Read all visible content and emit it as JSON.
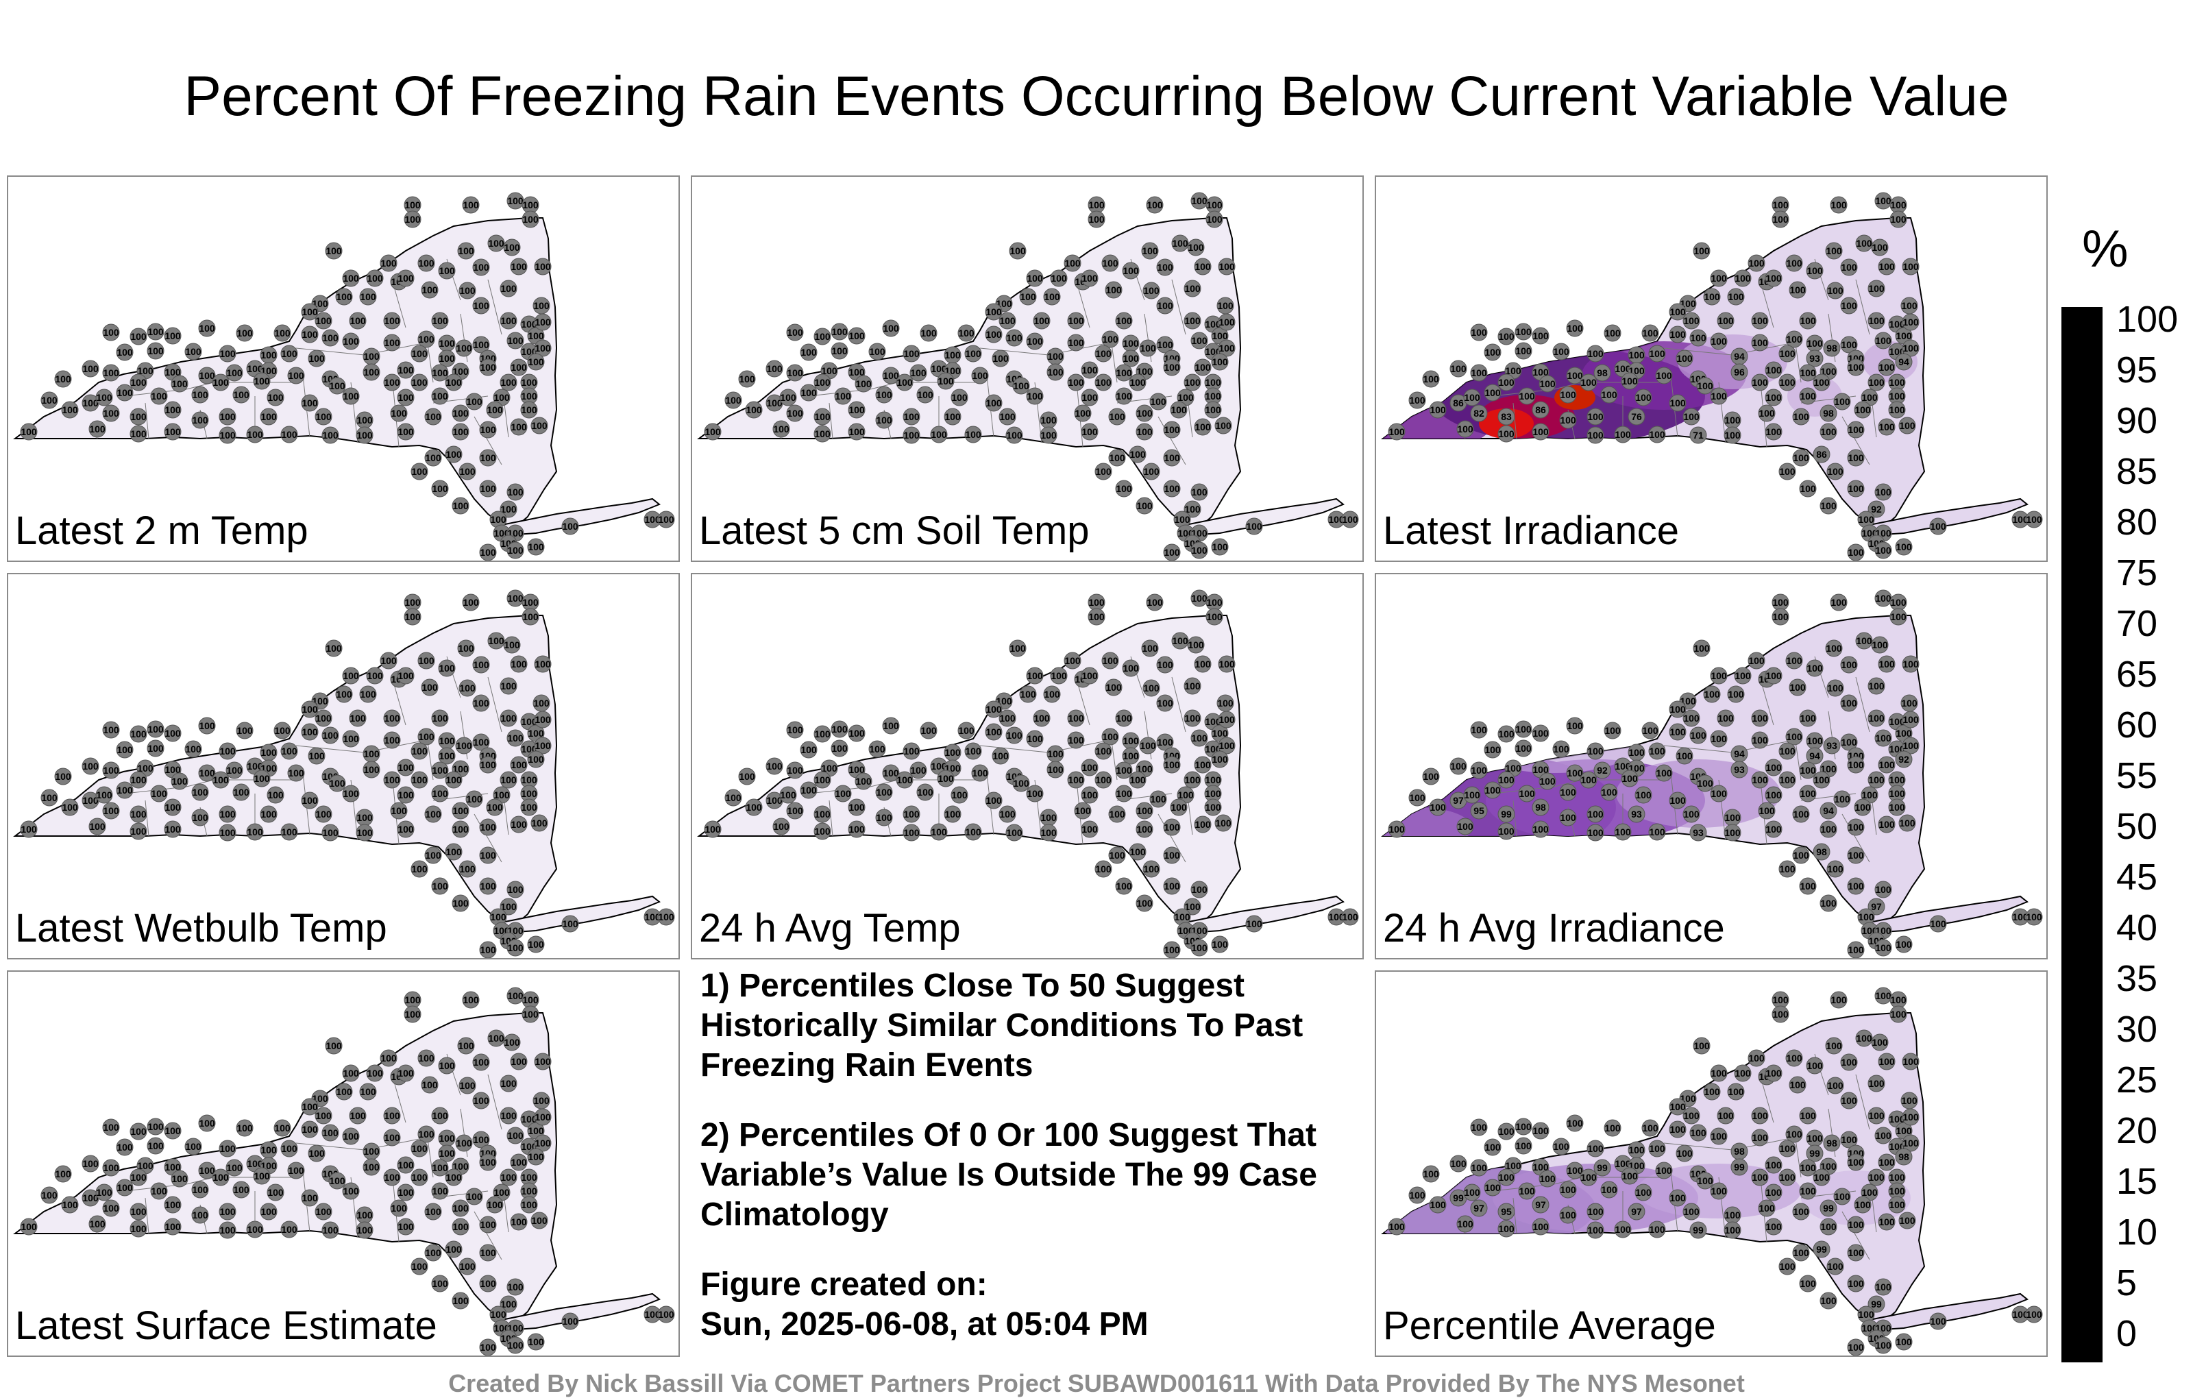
{
  "title": "Percent Of Freezing Rain Events Occurring Below Current Variable Value",
  "panels": [
    {
      "label": "Latest 2 m Temp",
      "field": "uniform",
      "value": 100
    },
    {
      "label": "Latest 5 cm Soil Temp",
      "field": "uniform",
      "value": 100
    },
    {
      "label": "Latest Irradiance",
      "field": "irradiance",
      "low_values": [
        "98",
        "86",
        "71",
        "82",
        "83",
        "86",
        "76",
        "94",
        "98",
        "96",
        "94",
        "93",
        "98",
        "92",
        "86"
      ]
    },
    {
      "label": "Latest Wetbulb Temp",
      "field": "uniform",
      "value": 100
    },
    {
      "label": "24 h Avg Temp",
      "field": "uniform",
      "value": 100
    },
    {
      "label": "24 h Avg Irradiance",
      "field": "avg_irradiance",
      "low_values": [
        "94",
        "97",
        "93",
        "95",
        "99",
        "98",
        "93",
        "92",
        "92",
        "93",
        "94",
        "94",
        "93",
        "97",
        "98"
      ]
    },
    {
      "label": "Latest Surface Estimate",
      "field": "uniform",
      "value": 100
    },
    {
      "label": "Percentile Average",
      "field": "average",
      "low_values": [
        "99",
        "99",
        "99",
        "97",
        "95",
        "97",
        "97",
        "98",
        "99",
        "99",
        "98",
        "99",
        "98",
        "99",
        "99"
      ]
    }
  ],
  "notes": {
    "line1": "1) Percentiles Close To 50 Suggest Historically Similar Conditions To Past Freezing Rain Events",
    "line2": "2) Percentiles Of 0 Or 100 Suggest That Variable’s Value Is Outside The 99 Case Climatology",
    "created_label": "Figure created on:",
    "created_value": "Sun, 2025-06-08, at 05:04 PM"
  },
  "credit": "Created By Nick Bassill Via COMET Partners Project SUBAWD001611 With Data Provided By The NYS Mesonet",
  "colorbar": {
    "unit": "%",
    "ticks": [
      "100",
      "95",
      "90",
      "85",
      "80",
      "75",
      "70",
      "65",
      "60",
      "55",
      "50",
      "45",
      "40",
      "35",
      "30",
      "25",
      "20",
      "15",
      "10",
      "5",
      "0"
    ],
    "colors": [
      "#000000",
      "#1a0033",
      "#000080",
      "#0000cc",
      "#0044ff",
      "#0088ff",
      "#00bbee",
      "#00ddcc",
      "#00c080",
      "#00b000",
      "#44cc00",
      "#99dd00",
      "#dddd00",
      "#ffee00",
      "#ffcc00",
      "#ff9900",
      "#ff6600",
      "#ff2200",
      "#dd0000",
      "#aa0066",
      "#7a1a9a",
      "#9966bb",
      "#b899cc",
      "#d6c6e0",
      "#f3eff7"
    ]
  }
}
